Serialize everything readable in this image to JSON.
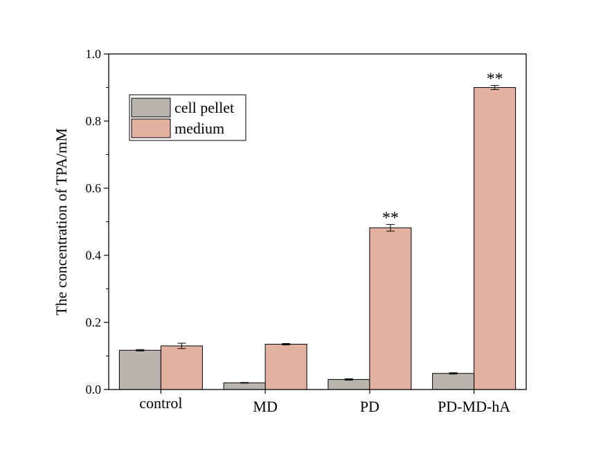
{
  "chart_data": {
    "type": "bar",
    "title": "",
    "xlabel": "",
    "ylabel": "The concentration of TPA/mM",
    "ylim": [
      0,
      1.0
    ],
    "yticks": [
      "0.0",
      "0.2",
      "0.4",
      "0.6",
      "0.8",
      "1.0"
    ],
    "categories": [
      "control",
      "MD",
      "PD",
      "PD-MD-hA"
    ],
    "series": [
      {
        "name": "cell pellet",
        "color": "#bab4ae",
        "values": [
          0.117,
          0.02,
          0.03,
          0.048
        ],
        "errors": [
          0.002,
          0.001,
          0.002,
          0.002
        ]
      },
      {
        "name": "medium",
        "color": "#e3b1a0",
        "values": [
          0.13,
          0.135,
          0.482,
          0.9
        ],
        "errors": [
          0.008,
          0.002,
          0.01,
          0.006
        ]
      }
    ],
    "annotations": [
      {
        "category": "PD",
        "series": "medium",
        "text": "**"
      },
      {
        "category": "PD-MD-hA",
        "series": "medium",
        "text": "**"
      }
    ],
    "legend_position": "top-left",
    "grid": false
  }
}
